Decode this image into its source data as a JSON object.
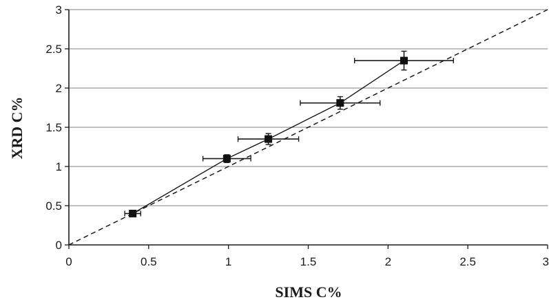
{
  "chart_data": {
    "type": "scatter",
    "xlabel": "SIMS C%",
    "ylabel": "XRD C%",
    "xlim": [
      0,
      3
    ],
    "ylim": [
      0,
      3
    ],
    "x_ticks": [
      "0",
      "0.5",
      "1",
      "1.5",
      "2",
      "2.5",
      "3"
    ],
    "y_ticks": [
      "0",
      "0.5",
      "1",
      "1.5",
      "2",
      "2.5",
      "3"
    ],
    "grid": "horizontal",
    "legend": "none",
    "series": [
      {
        "marker": "square",
        "line": "solid",
        "points": [
          {
            "x": 0.4,
            "y": 0.4,
            "x_err": 0.05,
            "y_err": 0.02
          },
          {
            "x": 0.99,
            "y": 1.1,
            "x_err": 0.15,
            "y_err": 0.05
          },
          {
            "x": 1.25,
            "y": 1.35,
            "x_err": 0.19,
            "y_err": 0.07
          },
          {
            "x": 1.7,
            "y": 1.81,
            "x_err": 0.25,
            "y_err": 0.08
          },
          {
            "x": 2.1,
            "y": 2.35,
            "x_err": 0.31,
            "y_err": 0.12
          }
        ]
      }
    ],
    "reference_line": {
      "style": "dashed",
      "x": [
        0,
        3
      ],
      "y": [
        0,
        3
      ]
    }
  }
}
